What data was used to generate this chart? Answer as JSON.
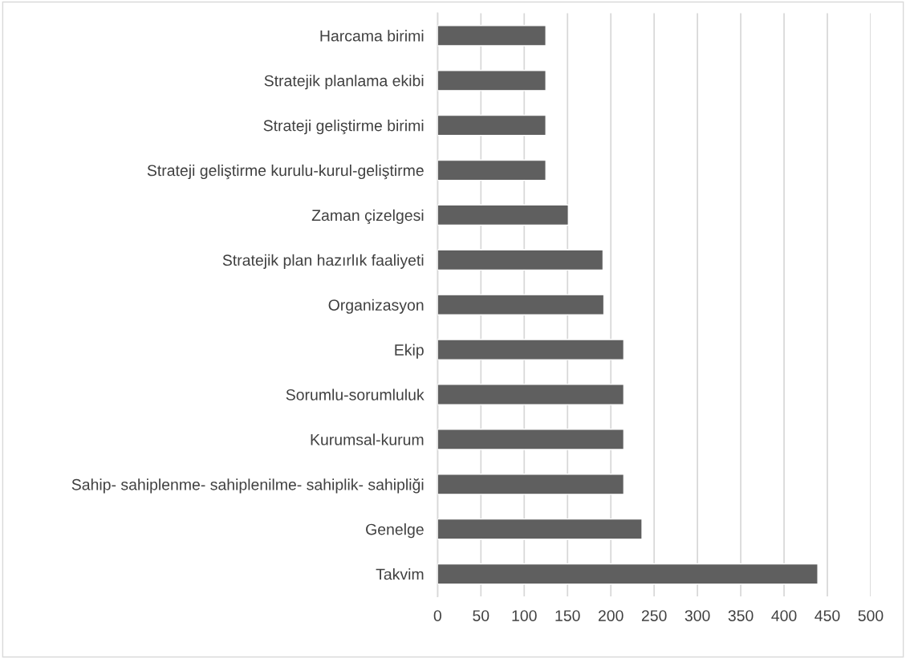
{
  "chart_data": {
    "type": "bar",
    "orientation": "horizontal",
    "categories": [
      "Harcama birimi",
      "Stratejik planlama ekibi",
      "Strateji geliştirme birimi",
      "Strateji geliştirme kurulu-kurul-geliştirme",
      "Zaman çizelgesi",
      "Stratejik plan hazırlık faaliyeti",
      "Organizasyon",
      "Ekip",
      "Sorumlu-sorumluluk",
      "Kurumsal-kurum",
      "Sahip- sahiplenme- sahiplenilme- sahiplik- sahipliği",
      "Genelge",
      "Takvim"
    ],
    "values": [
      125,
      125,
      125,
      125,
      151,
      191,
      192,
      215,
      215,
      215,
      215,
      236,
      439
    ],
    "color": "#5f5f5f",
    "xlim": [
      0,
      500
    ],
    "xticks": [
      0,
      50,
      100,
      150,
      200,
      250,
      300,
      350,
      400,
      450,
      500
    ],
    "grid": "x"
  }
}
